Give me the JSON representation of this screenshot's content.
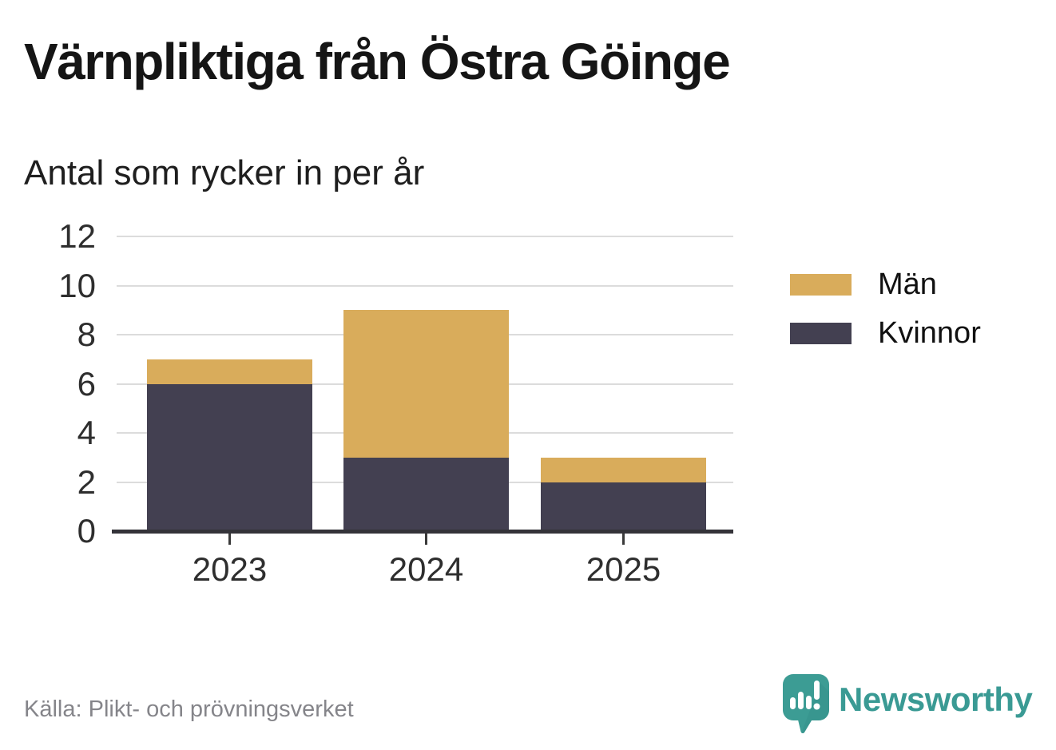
{
  "header": {
    "title": "Värnpliktiga från Östra Göinge",
    "subtitle": "Antal som rycker in per år"
  },
  "chart_data": {
    "type": "bar",
    "stacked": true,
    "title": "Värnpliktiga från Östra Göinge",
    "subtitle": "Antal som rycker in per år",
    "categories": [
      "2023",
      "2024",
      "2025"
    ],
    "series": [
      {
        "name": "Män",
        "color": "#D9AC5B",
        "values": [
          1,
          6,
          1
        ]
      },
      {
        "name": "Kvinnor",
        "color": "#434051",
        "values": [
          6,
          3,
          2
        ]
      }
    ],
    "stack_bottom_to_top": [
      "Kvinnor",
      "Män"
    ],
    "totals": [
      7,
      9,
      3
    ],
    "xlabel": "",
    "ylabel": "",
    "ylim": [
      0,
      12
    ],
    "yticks": [
      0,
      2,
      4,
      6,
      8,
      10,
      12
    ],
    "grid": "horizontal",
    "legend_position": "right"
  },
  "footer": {
    "source": "Källa: Plikt- och prövningsverket",
    "brand": "Newsworthy"
  },
  "colors": {
    "men": "#D9AC5B",
    "women": "#434051",
    "grid": "#DCDCDC",
    "axis": "#343339",
    "brand_teal": "#3A9A94",
    "muted_text": "#85858A"
  }
}
